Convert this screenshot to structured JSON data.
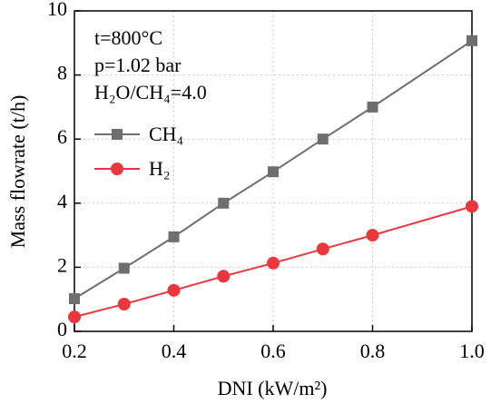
{
  "chart_data": {
    "type": "line",
    "x_label": "DNI (kW/m²)",
    "y_label": "Mass flowrate (t/h)",
    "annotations": [
      "t=800°C",
      "p=1.02 bar",
      "H₂O/CH₄=4.0"
    ],
    "x": [
      0.2,
      0.3,
      0.4,
      0.5,
      0.6,
      0.7,
      0.8,
      1.0
    ],
    "series": [
      {
        "name": "CH₄",
        "color": "#6e6e6e",
        "marker": "square",
        "values": [
          1.02,
          1.97,
          2.95,
          4.0,
          4.98,
          6.0,
          7.0,
          9.07
        ]
      },
      {
        "name": "H₂",
        "color": "#e8383d",
        "marker": "circle",
        "values": [
          0.45,
          0.85,
          1.28,
          1.72,
          2.13,
          2.57,
          3.0,
          3.9
        ]
      }
    ],
    "xlim": [
      0.2,
      1.0
    ],
    "xticks": [
      0.2,
      0.4,
      0.6,
      0.8,
      {
        "value": 1,
        "label": "1.0"
      }
    ],
    "ylim": [
      0,
      10
    ],
    "yticks": [
      0,
      2,
      4,
      6,
      8,
      10
    ],
    "grid": true,
    "legend": "upper left"
  }
}
